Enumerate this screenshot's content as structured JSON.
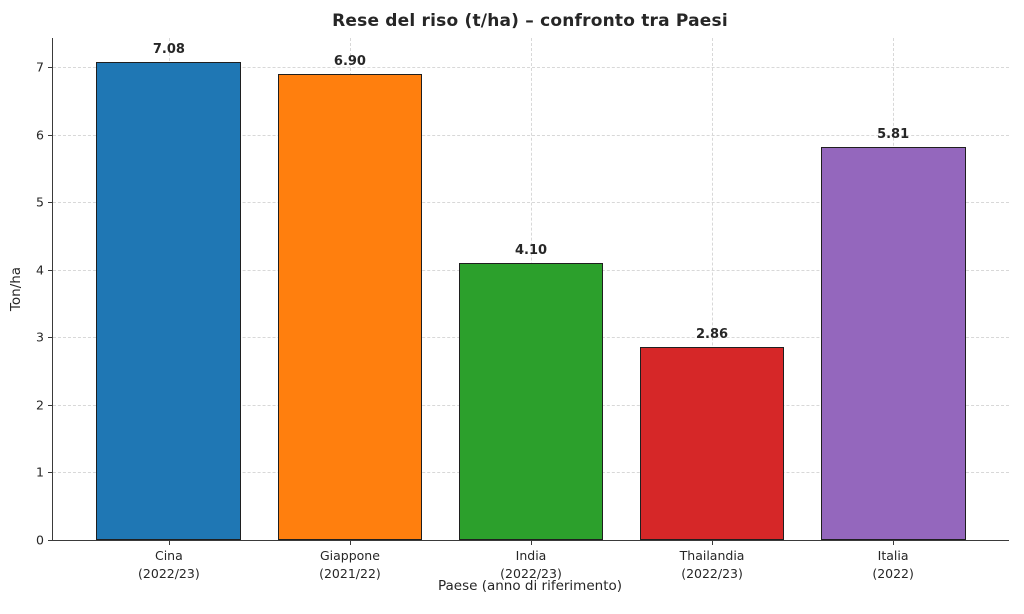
{
  "chart_data": {
    "type": "bar",
    "title": "Rese del riso (t/ha) – confronto tra Paesi",
    "xlabel": "Paese (anno di riferimento)",
    "ylabel": "Ton/ha",
    "ylim": [
      0,
      7.43
    ],
    "yticks": [
      0,
      1,
      2,
      3,
      4,
      5,
      6,
      7
    ],
    "grid": "dashed, both axes",
    "legend": "none",
    "axis_color": "#3a3a3a",
    "grid_color": "#d8d8d8",
    "bar_edge_color": "#1f1f1f",
    "bars": [
      {
        "country": "Cina",
        "period": "(2022/23)",
        "value": 7.08,
        "label": "7.08",
        "color": "#1f77b4"
      },
      {
        "country": "Giappone",
        "period": "(2021/22)",
        "value": 6.9,
        "label": "6.90",
        "color": "#ff7f0e"
      },
      {
        "country": "India",
        "period": "(2022/23)",
        "value": 4.1,
        "label": "4.10",
        "color": "#2ca02c"
      },
      {
        "country": "Thailandia",
        "period": "(2022/23)",
        "value": 2.86,
        "label": "2.86",
        "color": "#d62728"
      },
      {
        "country": "Italia",
        "period": "(2022)",
        "value": 5.81,
        "label": "5.81",
        "color": "#9467bd"
      }
    ]
  }
}
